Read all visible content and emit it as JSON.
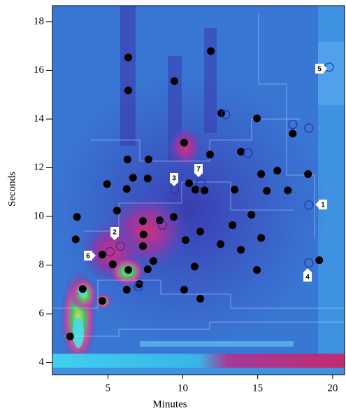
{
  "chart_data": {
    "type": "scatter",
    "x_label": "Minutes",
    "y_label": "Seconds",
    "xlim": [
      1.3,
      20.8
    ],
    "ylim": [
      3.5,
      18.66
    ],
    "xticks": [
      5,
      10,
      15,
      20
    ],
    "yticks": [
      4,
      6,
      8,
      10,
      12,
      14,
      16,
      18
    ],
    "series": [
      {
        "marker": "filled",
        "color": "#000000",
        "x": [
          6.36,
          6.36,
          9.44,
          11.87,
          12.57,
          14.95,
          17.34,
          10.09,
          6.31,
          7.71,
          11.82,
          13.88,
          6.68,
          7.66,
          4.95,
          6.26,
          10.42,
          10.84,
          11.45,
          13.46,
          15.23,
          15.61,
          16.31,
          17.01,
          18.36,
          2.94,
          5.61,
          9.39,
          8.46,
          7.34,
          7.38,
          7.34,
          11.17,
          10.19,
          13.32,
          14.58,
          15.23,
          13.88,
          12.52,
          2.85,
          4.63,
          5.33,
          8.04,
          7.66,
          6.36,
          10.79,
          14.95,
          19.11,
          3.32,
          4.63,
          6.26,
          7.1,
          10.09,
          11.17,
          2.48
        ],
        "y": [
          16.53,
          15.18,
          15.56,
          16.79,
          14.24,
          14.03,
          13.4,
          13.03,
          12.34,
          12.34,
          12.54,
          12.66,
          11.59,
          11.56,
          11.33,
          11.13,
          11.36,
          11.1,
          11.07,
          11.1,
          11.74,
          11.05,
          11.88,
          11.07,
          11.74,
          9.98,
          10.24,
          9.98,
          9.84,
          9.81,
          9.26,
          8.78,
          9.38,
          9.03,
          9.64,
          10.07,
          9.12,
          8.63,
          8.86,
          9.06,
          8.43,
          8.03,
          8.17,
          7.83,
          7.8,
          7.94,
          7.8,
          8.2,
          7.02,
          6.53,
          6.99,
          7.22,
          6.99,
          6.62,
          5.07
        ]
      },
      {
        "marker": "open",
        "color": "#2b2fa8",
        "x": [
          19.77,
          18.41,
          12.85,
          14.35,
          9.44,
          11.21,
          18.41,
          5.84,
          8.64,
          18.41,
          5.14,
          7.05,
          17.34
        ],
        "y": [
          16.13,
          13.63,
          14.18,
          12.6,
          11.1,
          11.36,
          10.47,
          8.78,
          9.64,
          8.09,
          8.55,
          7.11,
          13.78
        ]
      }
    ],
    "annotations": [
      "1",
      "2",
      "3",
      "4",
      "5",
      "6",
      "7"
    ]
  }
}
